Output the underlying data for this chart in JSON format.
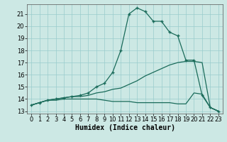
{
  "xlabel": "Humidex (Indice chaleur)",
  "bg_color": "#cce8e4",
  "grid_color": "#99cccc",
  "line_color": "#1a6b5a",
  "xlim": [
    -0.5,
    23.5
  ],
  "ylim": [
    12.8,
    21.8
  ],
  "xticks": [
    0,
    1,
    2,
    3,
    4,
    5,
    6,
    7,
    8,
    9,
    10,
    11,
    12,
    13,
    14,
    15,
    16,
    17,
    18,
    19,
    20,
    21,
    22,
    23
  ],
  "yticks": [
    13,
    14,
    15,
    16,
    17,
    18,
    19,
    20,
    21
  ],
  "curve_top_x": [
    0,
    1,
    2,
    3,
    4,
    5,
    6,
    7,
    8,
    9,
    10,
    11,
    12,
    13,
    14,
    15,
    16,
    17,
    18,
    19,
    20,
    21,
    22,
    23
  ],
  "curve_top_y": [
    13.5,
    13.7,
    13.9,
    14.0,
    14.1,
    14.2,
    14.3,
    14.5,
    15.0,
    15.3,
    16.2,
    18.0,
    21.0,
    21.5,
    21.2,
    20.4,
    20.4,
    19.5,
    19.2,
    17.2,
    17.2,
    14.3,
    13.3,
    13.0
  ],
  "curve_mid_x": [
    0,
    1,
    2,
    3,
    4,
    5,
    6,
    7,
    8,
    9,
    10,
    11,
    12,
    13,
    14,
    15,
    16,
    17,
    18,
    19,
    20,
    21,
    22,
    23
  ],
  "curve_mid_y": [
    13.5,
    13.7,
    13.9,
    14.0,
    14.1,
    14.2,
    14.2,
    14.3,
    14.5,
    14.6,
    14.8,
    14.9,
    15.2,
    15.5,
    15.9,
    16.2,
    16.5,
    16.8,
    17.0,
    17.1,
    17.1,
    17.0,
    13.3,
    13.0
  ],
  "curve_bot_x": [
    0,
    1,
    2,
    3,
    4,
    5,
    6,
    7,
    8,
    9,
    10,
    11,
    12,
    13,
    14,
    15,
    16,
    17,
    18,
    19,
    20,
    21,
    22,
    23
  ],
  "curve_bot_y": [
    13.5,
    13.7,
    13.9,
    13.9,
    14.0,
    14.0,
    14.0,
    14.0,
    14.0,
    13.9,
    13.8,
    13.8,
    13.8,
    13.7,
    13.7,
    13.7,
    13.7,
    13.7,
    13.6,
    13.6,
    14.5,
    14.4,
    13.3,
    13.0
  ],
  "xlabel_fontsize": 7,
  "tick_fontsize": 6
}
